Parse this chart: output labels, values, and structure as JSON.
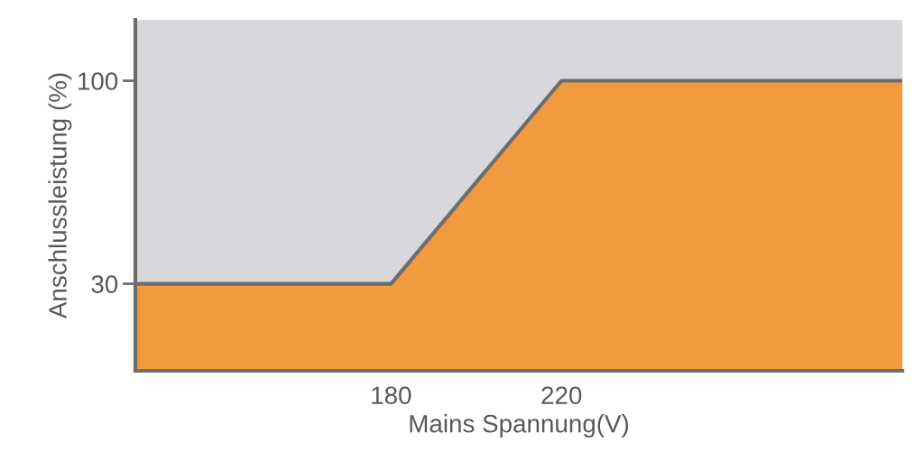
{
  "chart_data": {
    "type": "area",
    "xlabel": "Mains Spannung(V)",
    "ylabel": "Anschlussleistung (%)",
    "x": [
      120,
      180,
      220,
      300
    ],
    "series": [
      {
        "color": "#f39a3e",
        "values": [
          30,
          30,
          100,
          100
        ]
      }
    ],
    "xlim": [
      120,
      300
    ],
    "ylim": [
      0,
      121
    ],
    "xticks": [
      180,
      220
    ],
    "yticks": [
      30,
      100
    ],
    "grid": false,
    "legend": false
  }
}
